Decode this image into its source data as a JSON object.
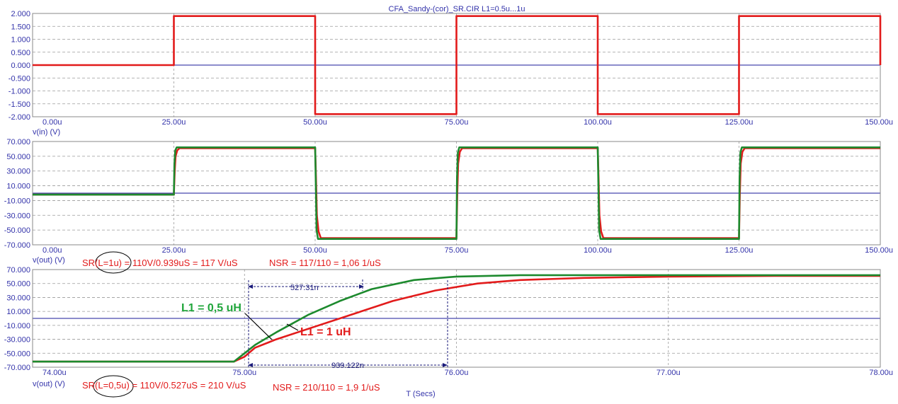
{
  "title": "CFA_Sandy-(cor)_SR.CIR L1=0.5u...1u",
  "xlabel": "T (Secs)",
  "colors": {
    "axis": "#888888",
    "grid": "#9a9a9a",
    "zero": "#1a1a9a",
    "red": "#e21b1b",
    "green": "#1d8a2e",
    "label_green": "#1fa53a",
    "text": "#3333aa",
    "measure": "#1a1a7a"
  },
  "chart_data": [
    {
      "type": "line",
      "ylabel": "v(in) (V)",
      "xlim": [
        0,
        150
      ],
      "ylim": [
        -2,
        2
      ],
      "x_ticks": [
        "0.00u",
        "25.00u",
        "50.00u",
        "75.00u",
        "100.00u",
        "125.00u",
        "150.00u"
      ],
      "y_ticks": [
        "2.000",
        "1.500",
        "1.000",
        "0.500",
        "0.000",
        "-0.500",
        "-1.000",
        "-1.500",
        "-2.000"
      ],
      "y_tick_values": [
        2,
        1.5,
        1,
        0.5,
        0,
        -0.5,
        -1,
        -1.5,
        -2
      ],
      "series": [
        {
          "color": "red",
          "x": [
            0,
            25,
            25,
            50,
            50,
            75,
            75,
            100,
            100,
            125,
            125,
            150,
            150
          ],
          "y": [
            0,
            0,
            1.9,
            1.9,
            -1.9,
            -1.9,
            1.9,
            1.9,
            -1.9,
            -1.9,
            1.9,
            1.9,
            0
          ]
        }
      ]
    },
    {
      "type": "line",
      "ylabel": "v(out) (V)",
      "xlim": [
        0,
        150
      ],
      "ylim": [
        -70,
        70
      ],
      "x_ticks": [
        "0.00u",
        "25.00u",
        "50.00u",
        "75.00u",
        "100.00u",
        "125.00u",
        "150.00u"
      ],
      "y_ticks": [
        "70.000",
        "50.000",
        "30.000",
        "10.000",
        "-10.000",
        "-30.000",
        "-50.000",
        "-70.000"
      ],
      "y_tick_values": [
        70,
        50,
        30,
        10,
        -10,
        -30,
        -50,
        -70
      ],
      "series": [
        {
          "color": "red",
          "x": [
            0,
            25,
            25.15,
            25.3,
            25.6,
            26.0,
            50,
            50.15,
            50.3,
            50.6,
            51.0,
            75,
            75.15,
            75.3,
            75.6,
            76.0,
            100,
            100.15,
            100.3,
            100.6,
            101.0,
            125,
            125.15,
            125.3,
            125.6,
            126.0,
            150
          ],
          "y": [
            -2,
            -2,
            30,
            50,
            58,
            61,
            61,
            20,
            -30,
            -52,
            -61,
            -61,
            0,
            40,
            56,
            61,
            61,
            20,
            -30,
            -52,
            -61,
            -61,
            0,
            40,
            56,
            61,
            61
          ]
        },
        {
          "color": "green",
          "x": [
            0,
            25,
            25.1,
            25.25,
            25.5,
            50,
            50.1,
            50.25,
            50.5,
            75,
            75.1,
            75.25,
            75.5,
            100,
            100.1,
            100.25,
            100.5,
            125,
            125.1,
            125.25,
            125.5,
            150
          ],
          "y": [
            -2,
            -2,
            40,
            58,
            62,
            62,
            20,
            -50,
            -62,
            -62,
            20,
            55,
            62,
            62,
            20,
            -50,
            -62,
            -62,
            20,
            55,
            62,
            62
          ]
        }
      ]
    },
    {
      "type": "line",
      "ylabel": "v(out) (V)",
      "xlim": [
        74,
        78
      ],
      "ylim": [
        -70,
        70
      ],
      "x_ticks": [
        "74.00u",
        "75.00u",
        "76.00u",
        "77.00u",
        "78.00u"
      ],
      "y_ticks": [
        "70.000",
        "50.000",
        "30.000",
        "10.000",
        "-10.000",
        "-30.000",
        "-50.000",
        "-70.000"
      ],
      "y_tick_values": [
        70,
        50,
        30,
        10,
        -10,
        -30,
        -50,
        -70
      ],
      "series": [
        {
          "name": "L1 = 1 uH",
          "color": "red",
          "x": [
            74,
            74.95,
            75.0,
            75.05,
            75.15,
            75.3,
            75.5,
            75.7,
            75.9,
            76.1,
            76.3,
            76.6,
            77.0,
            77.5,
            78
          ],
          "y": [
            -62,
            -62,
            -55,
            -42,
            -30,
            -15,
            5,
            25,
            40,
            50,
            55,
            58,
            60,
            61,
            61
          ]
        },
        {
          "name": "L1 = 0,5 uH",
          "color": "green",
          "x": [
            74,
            74.95,
            75.0,
            75.05,
            75.15,
            75.3,
            75.45,
            75.6,
            75.8,
            76.0,
            76.3,
            76.7,
            77.2,
            78
          ],
          "y": [
            -62,
            -62,
            -50,
            -38,
            -20,
            5,
            25,
            42,
            55,
            60,
            62,
            62,
            62,
            62
          ]
        }
      ],
      "annotations": {
        "sr_top": "SR(L=1u) = 110V/0.939uS = 117 V/uS",
        "nsr_top": "NSR = 117/110 = 1,06   1/uS",
        "sr_bottom": "SR(L=0,5u) = 110V/0.527uS = 210 V/uS",
        "nsr_bottom": "NSR = 210/110 = 1,9   1/uS",
        "label_green": "L1 = 0,5 uH",
        "label_red": "L1 = 1 uH",
        "measure_short": "527.31n",
        "measure_long": "939.122n"
      }
    }
  ]
}
